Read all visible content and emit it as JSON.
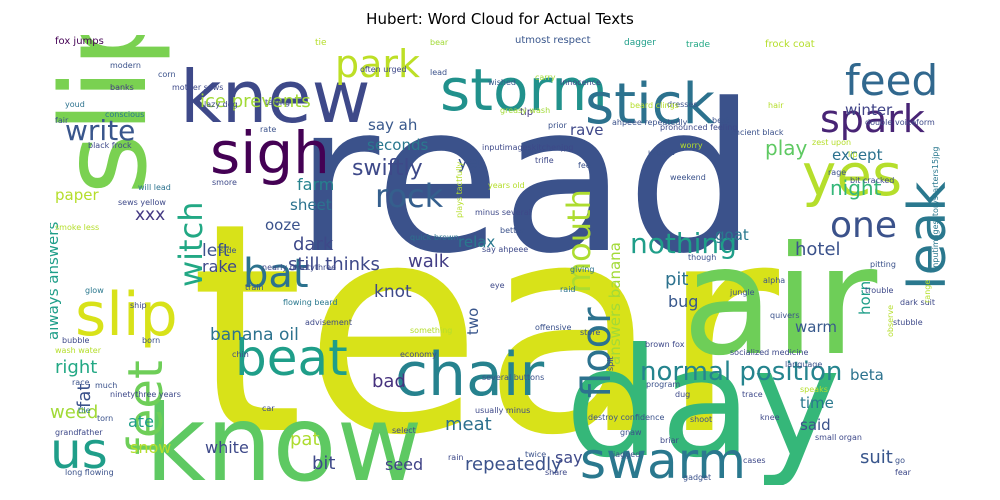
{
  "chart_data": {
    "type": "wordcloud",
    "title": "Hubert: Word Cloud for Actual Texts",
    "colormap": "viridis",
    "words": [
      {
        "text": "tear",
        "color": "#d8e219"
      },
      {
        "text": "read",
        "color": "#3b528b"
      },
      {
        "text": "know",
        "color": "#5ec962"
      },
      {
        "text": "day",
        "color": "#35b779"
      },
      {
        "text": "air",
        "color": "#6ece58"
      },
      {
        "text": "slip",
        "color": "#7ad151"
      },
      {
        "text": "knew",
        "color": "#3e4989"
      },
      {
        "text": "storm",
        "color": "#21918c"
      },
      {
        "text": "stick",
        "color": "#2c728e"
      },
      {
        "text": "sigh",
        "color": "#440154"
      },
      {
        "text": "yes",
        "color": "#b5de2b"
      },
      {
        "text": "spark",
        "color": "#482475"
      },
      {
        "text": "feed",
        "color": "#31688e"
      },
      {
        "text": "chair",
        "color": "#26828e"
      },
      {
        "text": "beat",
        "color": "#1f9e89"
      },
      {
        "text": "swarm",
        "color": "#2a788e"
      },
      {
        "text": "leak",
        "color": "#2a788e"
      },
      {
        "text": "slip",
        "color": "#d8e219"
      },
      {
        "text": "feet",
        "color": "#6ece58"
      },
      {
        "text": "us",
        "color": "#1f9e89"
      },
      {
        "text": "bat",
        "color": "#2c728e"
      },
      {
        "text": "witch",
        "color": "#22a884"
      },
      {
        "text": "park",
        "color": "#bddf26"
      },
      {
        "text": "one",
        "color": "#3b528b"
      },
      {
        "text": "rock",
        "color": "#355f8d"
      },
      {
        "text": "write",
        "color": "#39568c"
      },
      {
        "text": "mouth",
        "color": "#addc30"
      },
      {
        "text": "floor",
        "color": "#2c728e"
      },
      {
        "text": "nothing",
        "color": "#1f9e89"
      },
      {
        "text": "normal position",
        "color": "#25848e"
      },
      {
        "text": "ice prevents",
        "color": "#a2da37"
      },
      {
        "text": "play",
        "color": "#5ec962"
      },
      {
        "text": "winter",
        "color": "#414487"
      },
      {
        "text": "except",
        "color": "#2c728e"
      },
      {
        "text": "night",
        "color": "#35b779"
      },
      {
        "text": "hotel",
        "color": "#3b528b"
      },
      {
        "text": "dark",
        "color": "#3e4989"
      },
      {
        "text": "seconds",
        "color": "#2a788e"
      },
      {
        "text": "say ah",
        "color": "#38588c"
      },
      {
        "text": "swiftly",
        "color": "#3e4989"
      },
      {
        "text": "yet",
        "color": "#3b528b"
      },
      {
        "text": "rave",
        "color": "#3f4889"
      },
      {
        "text": "farm",
        "color": "#26828e"
      },
      {
        "text": "sheet",
        "color": "#2c728e"
      },
      {
        "text": "xxx",
        "color": "#443983"
      },
      {
        "text": "paper",
        "color": "#b5de2b"
      },
      {
        "text": "goat",
        "color": "#2a788e"
      },
      {
        "text": "ooze",
        "color": "#3b528b"
      },
      {
        "text": "walk",
        "color": "#433e85"
      },
      {
        "text": "relax",
        "color": "#2a788e"
      },
      {
        "text": "answers banana",
        "color": "#a2da37"
      },
      {
        "text": "pit",
        "color": "#2c728e"
      },
      {
        "text": "still thinks",
        "color": "#3e4989"
      },
      {
        "text": "knot",
        "color": "#3e4989"
      },
      {
        "text": "two",
        "color": "#39568c"
      },
      {
        "text": "rake",
        "color": "#3e4989"
      },
      {
        "text": "left",
        "color": "#3b528b"
      },
      {
        "text": "bug",
        "color": "#38588c"
      },
      {
        "text": "warm",
        "color": "#38598c"
      },
      {
        "text": "horn",
        "color": "#1f9e89"
      },
      {
        "text": "banana oil",
        "color": "#2c728e"
      },
      {
        "text": "always answers",
        "color": "#1f9e89"
      },
      {
        "text": "right",
        "color": "#22a884"
      },
      {
        "text": "fat",
        "color": "#3b528b"
      },
      {
        "text": "weed",
        "color": "#a2da37"
      },
      {
        "text": "ate",
        "color": "#1f9e89"
      },
      {
        "text": "bad",
        "color": "#46327e"
      },
      {
        "text": "meat",
        "color": "#2d708e"
      },
      {
        "text": "beta",
        "color": "#2c728e"
      },
      {
        "text": "time",
        "color": "#2a788e"
      },
      {
        "text": "said",
        "color": "#3b528b"
      },
      {
        "text": "suit",
        "color": "#39568c"
      },
      {
        "text": "white",
        "color": "#3e4989"
      },
      {
        "text": "pat",
        "color": "#addc30"
      },
      {
        "text": "snow",
        "color": "#b5de2b"
      },
      {
        "text": "bit",
        "color": "#3e4989"
      },
      {
        "text": "seed",
        "color": "#414487"
      },
      {
        "text": "repeatedly",
        "color": "#3b528b"
      },
      {
        "text": "say",
        "color": "#3e4989"
      },
      {
        "text": "fox jumps",
        "color": "#440154"
      },
      {
        "text": "corn",
        "color": "#3b528b"
      },
      {
        "text": "tie",
        "color": "#b5de2b"
      },
      {
        "text": "bear",
        "color": "#a2da37"
      },
      {
        "text": "utmost respect",
        "color": "#39568c"
      },
      {
        "text": "dagger",
        "color": "#1f9e89"
      },
      {
        "text": "trade",
        "color": "#22a884"
      },
      {
        "text": "frock coat",
        "color": "#b5de2b"
      },
      {
        "text": "modern",
        "color": "#3b528b"
      },
      {
        "text": "often urged",
        "color": "#3e4989"
      },
      {
        "text": "lead",
        "color": "#3b528b"
      },
      {
        "text": "wished",
        "color": "#38598c"
      },
      {
        "text": "carry",
        "color": "#a2da37"
      },
      {
        "text": "innocence",
        "color": "#3e4989"
      },
      {
        "text": "dresses",
        "color": "#3b528b"
      },
      {
        "text": "banks",
        "color": "#443983"
      },
      {
        "text": "mother sews",
        "color": "#3e4989"
      },
      {
        "text": "lazy dog",
        "color": "#3e4989"
      },
      {
        "text": "youd",
        "color": "#2c728e"
      },
      {
        "text": "taking",
        "color": "#3e4989"
      },
      {
        "text": "tip",
        "color": "#443983"
      },
      {
        "text": "greasy wash",
        "color": "#a2da37"
      },
      {
        "text": "prior",
        "color": "#3b528b"
      },
      {
        "text": "beard clings",
        "color": "#b5de2b"
      },
      {
        "text": "hair",
        "color": "#b5de2b"
      },
      {
        "text": "conscious",
        "color": "#2a788e"
      },
      {
        "text": "fair",
        "color": "#3b528b"
      },
      {
        "text": "black frock",
        "color": "#3e4989"
      },
      {
        "text": "ahpeee repeatedly",
        "color": "#3b528b"
      },
      {
        "text": "pronounced feeling",
        "color": "#3e4989"
      },
      {
        "text": "best",
        "color": "#3b528b"
      },
      {
        "text": "zest upon",
        "color": "#b5de2b"
      },
      {
        "text": "voiceform",
        "color": "#3e4989"
      },
      {
        "text": "double",
        "color": "#3e4989"
      },
      {
        "text": "ancient black",
        "color": "#3b528b"
      },
      {
        "text": "inputimageskitchenjpg",
        "color": "#3e4989"
      },
      {
        "text": "rate",
        "color": "#3b528b"
      },
      {
        "text": "will lead",
        "color": "#2c728e"
      },
      {
        "text": "smore",
        "color": "#3e4989"
      },
      {
        "text": "trifle",
        "color": "#3e4989"
      },
      {
        "text": "worry",
        "color": "#b5de2b"
      },
      {
        "text": "urgent",
        "color": "#3b528b"
      },
      {
        "text": "lip",
        "color": "#b5de2b"
      },
      {
        "text": "rage",
        "color": "#3b528b"
      },
      {
        "text": "bit cracked",
        "color": "#3e4989"
      },
      {
        "text": "fee",
        "color": "#3b528b"
      },
      {
        "text": "years old",
        "color": "#b5de2b"
      },
      {
        "text": "weekend",
        "color": "#3b528b"
      },
      {
        "text": "inputimagesstorystarters15jpg",
        "color": "#2a788e"
      },
      {
        "text": "plays tactfully",
        "color": "#b5de2b"
      },
      {
        "text": "minus several",
        "color": "#3e4989"
      },
      {
        "text": "better",
        "color": "#3b528b"
      },
      {
        "text": "smoke less",
        "color": "#b5de2b"
      },
      {
        "text": "sews yellow",
        "color": "#3e4989"
      },
      {
        "text": "nearly ninetythree",
        "color": "#3e4989"
      },
      {
        "text": "side",
        "color": "#3b528b"
      },
      {
        "text": "quick brown",
        "color": "#2c728e"
      },
      {
        "text": "say ahpeee",
        "color": "#3e4989"
      },
      {
        "text": "pitting",
        "color": "#3b528b"
      },
      {
        "text": "giving",
        "color": "#2c728e"
      },
      {
        "text": "though",
        "color": "#3b528b"
      },
      {
        "text": "trouble",
        "color": "#3e4989"
      },
      {
        "text": "glow",
        "color": "#2a788e"
      },
      {
        "text": "train",
        "color": "#3b528b"
      },
      {
        "text": "raid",
        "color": "#2c728e"
      },
      {
        "text": "eye",
        "color": "#3e4989"
      },
      {
        "text": "alpha",
        "color": "#3b528b"
      },
      {
        "text": "jungle",
        "color": "#3b528b"
      },
      {
        "text": "dark suit",
        "color": "#3e4989"
      },
      {
        "text": "ship",
        "color": "#3e4989"
      },
      {
        "text": "flowing beard",
        "color": "#2a788e"
      },
      {
        "text": "quivers",
        "color": "#3b528b"
      },
      {
        "text": "stubble",
        "color": "#3e4989"
      },
      {
        "text": "advisement",
        "color": "#3e4989"
      },
      {
        "text": "offensive",
        "color": "#3b528b"
      },
      {
        "text": "observe",
        "color": "#b5de2b"
      },
      {
        "text": "range",
        "color": "#b5de2b"
      },
      {
        "text": "something",
        "color": "#b5de2b"
      },
      {
        "text": "store",
        "color": "#3b528b"
      },
      {
        "text": "socialized medicine",
        "color": "#3e4989"
      },
      {
        "text": "born",
        "color": "#3b528b"
      },
      {
        "text": "bubble",
        "color": "#3e4989"
      },
      {
        "text": "wash water",
        "color": "#b5de2b"
      },
      {
        "text": "economy",
        "color": "#3e4989"
      },
      {
        "text": "brown fox",
        "color": "#3e4989"
      },
      {
        "text": "language",
        "color": "#3b528b"
      },
      {
        "text": "chin",
        "color": "#3e4989"
      },
      {
        "text": "race",
        "color": "#3b528b"
      },
      {
        "text": "much",
        "color": "#3b528b"
      },
      {
        "text": "ninetythree years",
        "color": "#3e4989"
      },
      {
        "text": "several buttons",
        "color": "#3b528b"
      },
      {
        "text": "spit",
        "color": "#3e4989"
      },
      {
        "text": "program",
        "color": "#3b528b"
      },
      {
        "text": "dug",
        "color": "#3e4989"
      },
      {
        "text": "trace",
        "color": "#3e4989"
      },
      {
        "text": "speaks",
        "color": "#b5de2b"
      },
      {
        "text": "tile",
        "color": "#2c728e"
      },
      {
        "text": "torn",
        "color": "#3b528b"
      },
      {
        "text": "usually minus",
        "color": "#3e4989"
      },
      {
        "text": "destroy confidence",
        "color": "#3b528b"
      },
      {
        "text": "car",
        "color": "#3e4989"
      },
      {
        "text": "shoot",
        "color": "#3b528b"
      },
      {
        "text": "knee",
        "color": "#3e4989"
      },
      {
        "text": "grandfather",
        "color": "#3e4989"
      },
      {
        "text": "gnaw",
        "color": "#3b528b"
      },
      {
        "text": "briar",
        "color": "#3e4989"
      },
      {
        "text": "small organ",
        "color": "#3e4989"
      },
      {
        "text": "select",
        "color": "#3e4989"
      },
      {
        "text": "jagged",
        "color": "#3b528b"
      },
      {
        "text": "rain",
        "color": "#3e4989"
      },
      {
        "text": "twice",
        "color": "#3b528b"
      },
      {
        "text": "share",
        "color": "#3e4989"
      },
      {
        "text": "long flowing",
        "color": "#3b528b"
      },
      {
        "text": "cases",
        "color": "#3e4989"
      },
      {
        "text": "go",
        "color": "#3b528b"
      },
      {
        "text": "fear",
        "color": "#3e4989"
      },
      {
        "text": "jacket",
        "color": "#3e4989"
      },
      {
        "text": "gadget",
        "color": "#3b528b"
      }
    ]
  }
}
